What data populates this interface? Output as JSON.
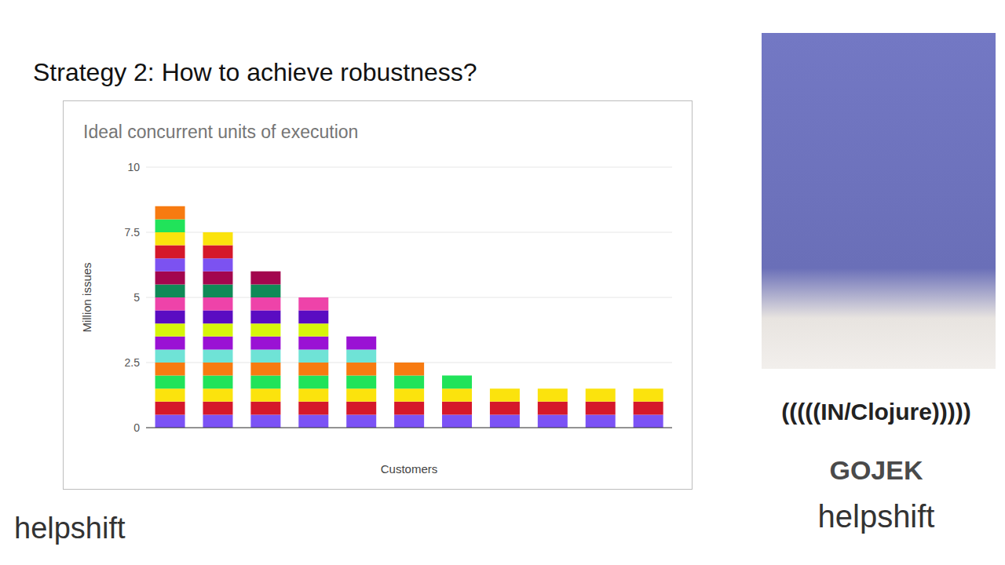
{
  "slide": {
    "title": "Strategy 2: How to achieve robustness?",
    "logos": [
      "helpshift",
      "(((((IN/Clojure)))))",
      "GOJEK",
      "helpshift"
    ]
  },
  "chart_data": {
    "type": "bar",
    "title": "Ideal concurrent units of execution",
    "x_label": "Customers",
    "y_label": "Million issues",
    "categories": [
      null,
      null,
      null,
      null,
      null,
      null,
      null,
      null,
      null,
      null,
      null
    ],
    "stacked": true,
    "grid": true,
    "tick_labels": "y",
    "ylim": [
      0,
      10
    ],
    "yticks": [
      0,
      2.5,
      5,
      7.5,
      10
    ],
    "series": [
      {
        "color": "#7b52f5",
        "values": [
          0.5,
          0.5,
          0.5,
          0.5,
          0.5,
          0.5,
          0.5,
          0.5,
          0.5,
          0.5,
          0.5
        ]
      },
      {
        "color": "#d5182a",
        "values": [
          0.5,
          0.5,
          0.5,
          0.5,
          0.5,
          0.5,
          0.5,
          0.5,
          0.5,
          0.5,
          0.5
        ]
      },
      {
        "color": "#fbe30d",
        "values": [
          0.5,
          0.5,
          0.5,
          0.5,
          0.5,
          0.5,
          0.5,
          0.5,
          0.5,
          0.5,
          0.5
        ]
      },
      {
        "color": "#21e35a",
        "values": [
          0.5,
          0.5,
          0.5,
          0.5,
          0.5,
          0.5,
          0.5,
          null,
          null,
          null,
          null
        ]
      },
      {
        "color": "#f77b11",
        "values": [
          0.5,
          0.5,
          0.5,
          0.5,
          0.5,
          0.5,
          null,
          null,
          null,
          null,
          null
        ]
      },
      {
        "color": "#6fe3d6",
        "values": [
          0.5,
          0.5,
          0.5,
          0.5,
          0.5,
          null,
          null,
          null,
          null,
          null,
          null
        ]
      },
      {
        "color": "#9a12d4",
        "values": [
          0.5,
          0.5,
          0.5,
          0.5,
          0.5,
          null,
          null,
          null,
          null,
          null,
          null
        ]
      },
      {
        "color": "#d7f50a",
        "values": [
          0.5,
          0.5,
          0.5,
          0.5,
          null,
          null,
          null,
          null,
          null,
          null,
          null
        ]
      },
      {
        "color": "#5a0cc2",
        "values": [
          0.5,
          0.5,
          0.5,
          0.5,
          null,
          null,
          null,
          null,
          null,
          null,
          null
        ]
      },
      {
        "color": "#ee43a9",
        "values": [
          0.5,
          0.5,
          0.5,
          0.5,
          null,
          null,
          null,
          null,
          null,
          null,
          null
        ]
      },
      {
        "color": "#0f8a57",
        "values": [
          0.5,
          0.5,
          0.5,
          null,
          null,
          null,
          null,
          null,
          null,
          null,
          null
        ]
      },
      {
        "color": "#a3064e",
        "values": [
          0.5,
          0.5,
          0.5,
          null,
          null,
          null,
          null,
          null,
          null,
          null,
          null
        ]
      },
      {
        "color": "#7c52f1",
        "values": [
          0.5,
          0.5,
          null,
          null,
          null,
          null,
          null,
          null,
          null,
          null,
          null
        ]
      },
      {
        "color": "#d5182a",
        "values": [
          0.5,
          0.5,
          null,
          null,
          null,
          null,
          null,
          null,
          null,
          null,
          null
        ]
      },
      {
        "color": "#fbe30d",
        "values": [
          0.5,
          0.5,
          null,
          null,
          null,
          null,
          null,
          null,
          null,
          null,
          null
        ]
      },
      {
        "color": "#21e35a",
        "values": [
          0.5,
          null,
          null,
          null,
          null,
          null,
          null,
          null,
          null,
          null,
          null
        ]
      },
      {
        "color": "#f77b11",
        "values": [
          0.5,
          null,
          null,
          null,
          null,
          null,
          null,
          null,
          null,
          null,
          null
        ]
      }
    ]
  }
}
